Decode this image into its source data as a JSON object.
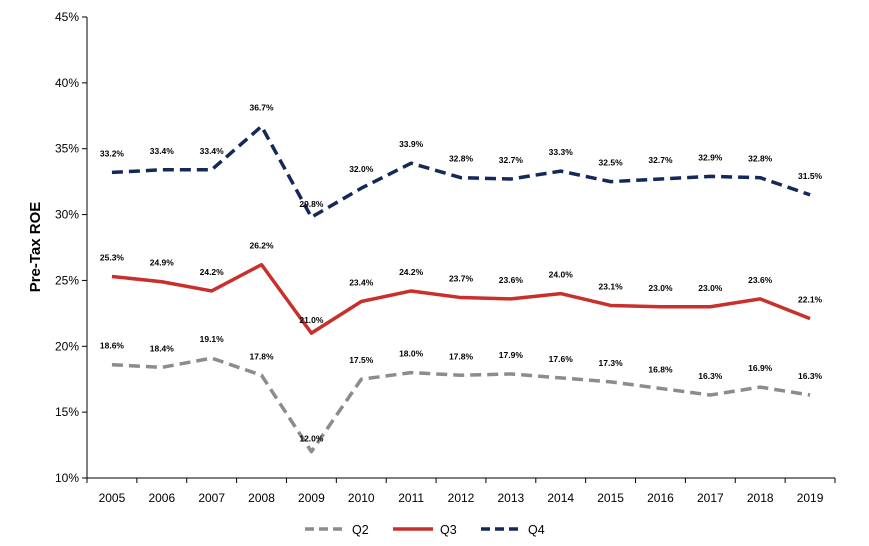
{
  "chart_data": {
    "type": "line",
    "title": "",
    "xlabel": "",
    "ylabel": "Pre-Tax ROE",
    "categories": [
      "2005",
      "2006",
      "2007",
      "2008",
      "2009",
      "2010",
      "2011",
      "2012",
      "2013",
      "2014",
      "2015",
      "2016",
      "2017",
      "2018",
      "2019"
    ],
    "ylim": [
      10,
      45
    ],
    "yticks": [
      10,
      15,
      20,
      25,
      30,
      35,
      40,
      45
    ],
    "ytick_labels": [
      "10%",
      "15%",
      "20%",
      "25%",
      "30%",
      "35%",
      "40%",
      "45%"
    ],
    "grid": false,
    "legend": "bottom",
    "series": [
      {
        "name": "Q2",
        "color": "#8c8c8c",
        "style": "dashed",
        "values": [
          18.6,
          18.4,
          19.1,
          17.8,
          12.0,
          17.5,
          18.0,
          17.8,
          17.9,
          17.6,
          17.3,
          16.8,
          16.3,
          16.9,
          16.3
        ],
        "labels": [
          "18.6%",
          "18.4%",
          "19.1%",
          "17.8%",
          "12.0%",
          "17.5%",
          "18.0%",
          "17.8%",
          "17.9%",
          "17.6%",
          "17.3%",
          "16.8%",
          "16.3%",
          "16.9%",
          "16.3%"
        ]
      },
      {
        "name": "Q3",
        "color": "#c9302c",
        "style": "solid",
        "values": [
          25.3,
          24.9,
          24.2,
          26.2,
          21.0,
          23.4,
          24.2,
          23.7,
          23.6,
          24.0,
          23.1,
          23.0,
          23.0,
          23.6,
          22.1
        ],
        "labels": [
          "25.3%",
          "24.9%",
          "24.2%",
          "26.2%",
          "21.0%",
          "23.4%",
          "24.2%",
          "23.7%",
          "23.6%",
          "24.0%",
          "23.1%",
          "23.0%",
          "23.0%",
          "23.6%",
          "22.1%"
        ]
      },
      {
        "name": "Q4",
        "color": "#14285a",
        "style": "dashed",
        "values": [
          33.2,
          33.4,
          33.4,
          36.7,
          29.8,
          32.0,
          33.9,
          32.8,
          32.7,
          33.3,
          32.5,
          32.7,
          32.9,
          32.8,
          31.5
        ],
        "labels": [
          "33.2%",
          "33.4%",
          "33.4%",
          "36.7%",
          "29.8%",
          "32.0%",
          "33.9%",
          "32.8%",
          "32.7%",
          "33.3%",
          "32.5%",
          "32.7%",
          "32.9%",
          "32.8%",
          "31.5%"
        ]
      }
    ]
  }
}
